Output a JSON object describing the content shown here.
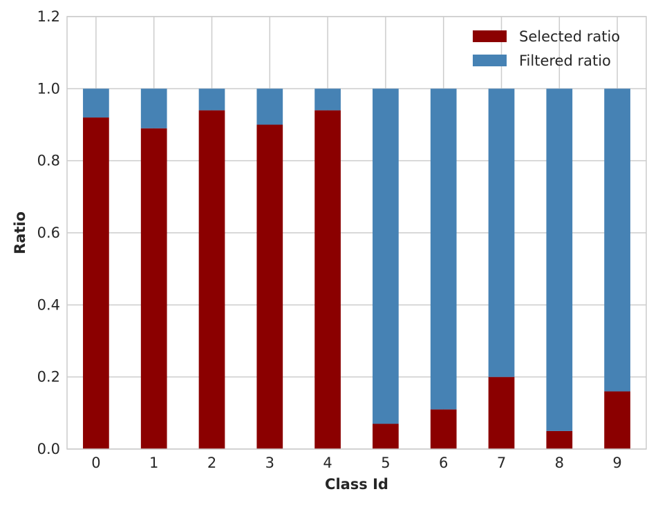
{
  "chart_data": {
    "type": "bar",
    "stacked": true,
    "categories": [
      "0",
      "1",
      "2",
      "3",
      "4",
      "5",
      "6",
      "7",
      "8",
      "9"
    ],
    "series": [
      {
        "name": "Selected ratio",
        "color": "#8b0000",
        "values": [
          0.92,
          0.89,
          0.94,
          0.9,
          0.94,
          0.07,
          0.11,
          0.2,
          0.05,
          0.16
        ]
      },
      {
        "name": "Filtered ratio",
        "color": "#4682b4",
        "values": [
          0.08,
          0.11,
          0.06,
          0.1,
          0.06,
          0.93,
          0.89,
          0.8,
          0.95,
          0.84
        ]
      }
    ],
    "xlabel": "Class Id",
    "ylabel": "Ratio",
    "ylim": [
      0,
      1.2
    ],
    "yticks": [
      "0.0",
      "0.2",
      "0.4",
      "0.6",
      "0.8",
      "1.0",
      "1.2"
    ],
    "grid": true,
    "legend_position": "top-right"
  }
}
